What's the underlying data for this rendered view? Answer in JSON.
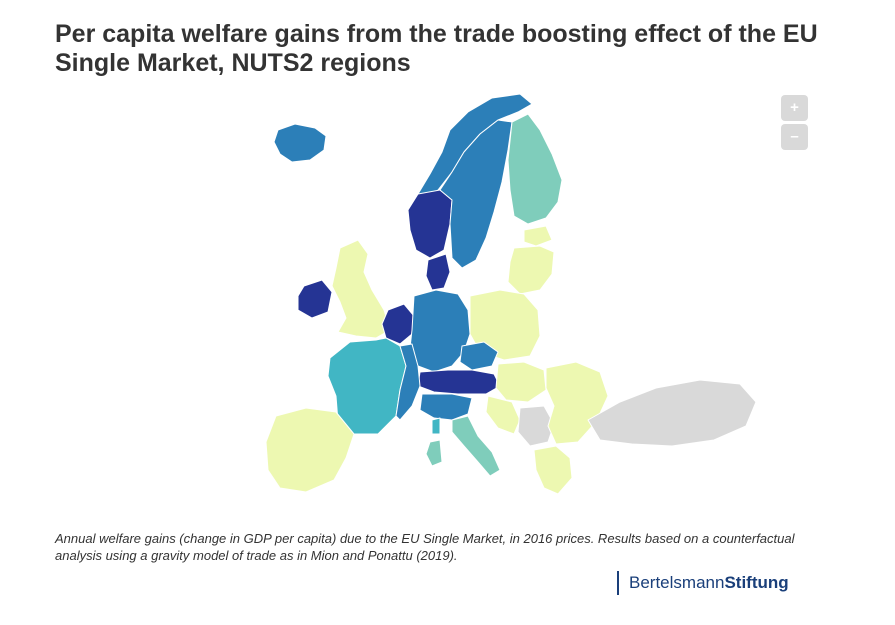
{
  "header": {
    "title": "Per capita welfare gains from the trade boosting effect of the EU Single Market, NUTS2 regions"
  },
  "map": {
    "zoom_in_label": "+",
    "zoom_out_label": "–",
    "colors": {
      "very_high": "#253494",
      "high": "#2c7fb8",
      "medium": "#41b6c4",
      "low": "#7fcdbb",
      "very_low": "#edf8b1",
      "no_data": "#d9d9d9",
      "border": "#ffffff"
    },
    "regions": [
      {
        "name": "iceland",
        "level": "high"
      },
      {
        "name": "norway-north",
        "level": "high"
      },
      {
        "name": "norway-south",
        "level": "very_high"
      },
      {
        "name": "sweden",
        "level": "high"
      },
      {
        "name": "finland",
        "level": "low"
      },
      {
        "name": "estonia",
        "level": "very_low"
      },
      {
        "name": "latvia-lithuania",
        "level": "very_low"
      },
      {
        "name": "denmark",
        "level": "very_high"
      },
      {
        "name": "ireland",
        "level": "very_high"
      },
      {
        "name": "uk",
        "level": "very_low"
      },
      {
        "name": "benelux",
        "level": "very_high"
      },
      {
        "name": "germany",
        "level": "high"
      },
      {
        "name": "poland",
        "level": "very_low"
      },
      {
        "name": "czechia",
        "level": "high"
      },
      {
        "name": "austria-switzerland",
        "level": "very_high"
      },
      {
        "name": "hungary-slovakia",
        "level": "very_low"
      },
      {
        "name": "france",
        "level": "medium"
      },
      {
        "name": "france-east",
        "level": "high"
      },
      {
        "name": "iberia",
        "level": "very_low"
      },
      {
        "name": "italy-north",
        "level": "high"
      },
      {
        "name": "italy-south",
        "level": "low"
      },
      {
        "name": "balkans-west",
        "level": "very_low"
      },
      {
        "name": "romania-bulgaria",
        "level": "very_low"
      },
      {
        "name": "greece",
        "level": "very_low"
      },
      {
        "name": "sardinia",
        "level": "low"
      },
      {
        "name": "corsica",
        "level": "medium"
      },
      {
        "name": "turkey",
        "level": "no_data"
      },
      {
        "name": "serbia-bosnia",
        "level": "no_data"
      }
    ]
  },
  "caption": "Annual welfare gains (change in GDP per capita) due to the EU Single Market, in 2016 prices. Results based on a counterfactual analysis using a gravity model of trade as in Mion and Ponattu (2019).",
  "brand": {
    "part1": "Bertelsmann",
    "part2": "Stiftung"
  }
}
